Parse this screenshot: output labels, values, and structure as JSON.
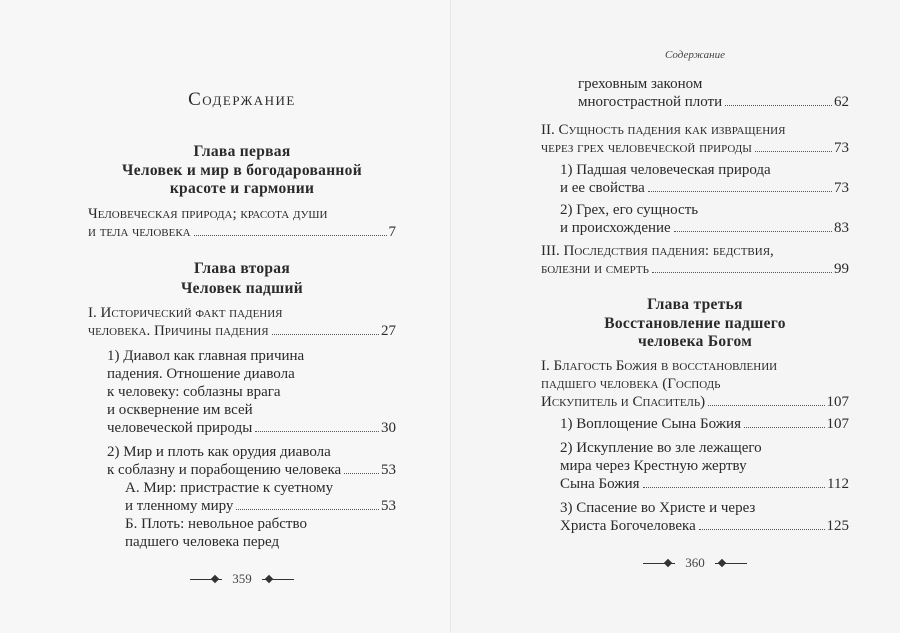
{
  "left_page": {
    "title": "Содержание",
    "chapter1": {
      "lines": [
        "Глава первая",
        "Человек и мир в богодарованной",
        "красоте и гармонии"
      ]
    },
    "chapter2": {
      "lines": [
        "Глава вторая",
        "Человек падший"
      ]
    },
    "entries": [
      {
        "lines": [
          "Человеческая природа; красота души",
          "и тела человека"
        ],
        "page": "7",
        "style": "smallcaps",
        "level": 0
      },
      {
        "lines": [
          "I. Исторический факт падения",
          "человека. Причины падения"
        ],
        "page": "27",
        "style": "smallcaps",
        "level": 0
      },
      {
        "lines": [
          "1) Диавол как главная причина",
          "падения. Отношение диавола",
          "к человеку: соблазны врага",
          "и осквернение им всей",
          "человеческой природы"
        ],
        "page": "30",
        "style": "normal",
        "level": 1
      },
      {
        "lines": [
          "2) Мир и плоть как орудия диавола",
          "к соблазну и порабощению человека"
        ],
        "page": "53",
        "style": "normal",
        "level": 1
      },
      {
        "lines": [
          "А. Мир: пристрастие к суетному",
          "и тленному миру"
        ],
        "page": "53",
        "style": "normal",
        "level": 2
      },
      {
        "lines": [
          "Б. Плоть: невольное рабство",
          "падшего человека перед"
        ],
        "style": "normal",
        "level": 2
      }
    ],
    "folio": "359"
  },
  "right_page": {
    "running_head": "Содержание",
    "chapter3": {
      "lines": [
        "Глава третья",
        "Восстановление падшего",
        "человека Богом"
      ]
    },
    "entries": [
      {
        "lines": [
          "греховным законом",
          "многострастной плоти"
        ],
        "page": "62",
        "style": "normal",
        "level": 2
      },
      {
        "lines": [
          "II. Сущность падения как извращения",
          "через грех человеческой природы"
        ],
        "page": "73",
        "style": "smallcaps",
        "level": 0
      },
      {
        "lines": [
          "1) Падшая человеческая природа",
          "и ее свойства"
        ],
        "page": "73",
        "style": "normal",
        "level": 1
      },
      {
        "lines": [
          "2) Грех, его сущность",
          "и происхождение"
        ],
        "page": "83",
        "style": "normal",
        "level": 1
      },
      {
        "lines": [
          "III. Последствия падения: бедствия,",
          "болезни и смерть"
        ],
        "page": "99",
        "style": "smallcaps",
        "level": 0
      },
      {
        "lines": [
          "I. Благость Божия в восстановлении",
          "падшего человека (Господь",
          "Искупитель и Спаситель)"
        ],
        "page": "107",
        "style": "smallcaps",
        "level": 0
      },
      {
        "lines": [
          "1) Воплощение Сына Божия"
        ],
        "page": "107",
        "style": "normal",
        "level": 1
      },
      {
        "lines": [
          "2) Искупление во зле лежащего",
          "мира через Крестную жертву",
          "Сына Божия"
        ],
        "page": "112",
        "style": "normal",
        "level": 1
      },
      {
        "lines": [
          "3) Спасение во Христе и через",
          "Христа Богочеловека"
        ],
        "page": "125",
        "style": "normal",
        "level": 1
      }
    ],
    "folio": "360"
  }
}
